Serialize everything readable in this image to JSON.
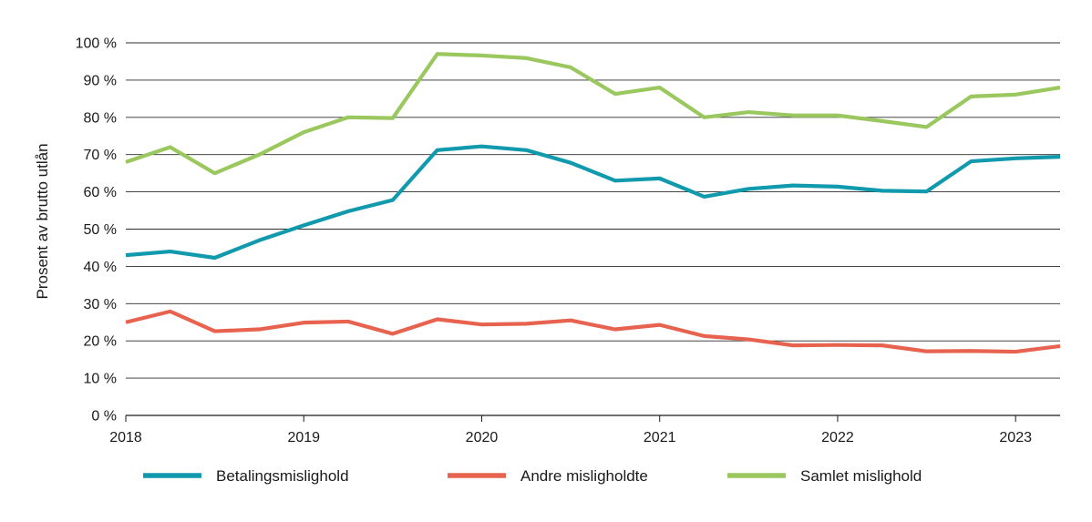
{
  "chart_data": {
    "type": "line",
    "title": "",
    "xlabel": "",
    "ylabel": "Prosent av brutto utlån",
    "x_tick_labels": [
      "2018",
      "2019",
      "2020",
      "2021",
      "2022",
      "2023"
    ],
    "y_tick_labels": [
      "0 %",
      "10 %",
      "20 %",
      "30 %",
      "40 %",
      "50 %",
      "60 %",
      "70 %",
      "80 %",
      "90 %",
      "100 %"
    ],
    "ylim": [
      0,
      100
    ],
    "xlim": [
      2018.0,
      2023.25
    ],
    "grid": "horizontal",
    "legend_position": "bottom",
    "x": [
      2018.0,
      2018.25,
      2018.5,
      2018.75,
      2019.0,
      2019.25,
      2019.5,
      2019.75,
      2020.0,
      2020.25,
      2020.5,
      2020.75,
      2021.0,
      2021.25,
      2021.5,
      2021.75,
      2022.0,
      2022.25,
      2022.5,
      2022.75,
      2023.0,
      2023.25
    ],
    "series": [
      {
        "name": "Betalingsmislighold",
        "color": "#1199ad",
        "values": [
          43.0,
          44.0,
          42.3,
          47.0,
          51.0,
          54.8,
          57.8,
          71.2,
          72.2,
          71.2,
          67.8,
          63.0,
          63.6,
          58.7,
          60.8,
          61.7,
          61.4,
          60.3,
          60.1,
          68.2,
          69.0,
          69.4
        ]
      },
      {
        "name": "Andre misligholdte",
        "color": "#e8634f",
        "values": [
          25.0,
          27.9,
          22.6,
          23.1,
          24.9,
          25.2,
          21.9,
          25.8,
          24.4,
          24.6,
          25.5,
          23.1,
          24.3,
          21.3,
          20.4,
          18.8,
          18.9,
          18.8,
          17.2,
          17.3,
          17.1,
          18.6
        ]
      },
      {
        "name": "Samlet mislighold",
        "color": "#9bc75f",
        "values": [
          68.0,
          72.0,
          65.0,
          70.0,
          76.0,
          80.0,
          79.8,
          97.0,
          96.6,
          95.9,
          93.4,
          86.3,
          88.0,
          80.0,
          81.4,
          80.5,
          80.5,
          79.0,
          77.4,
          85.6,
          86.1,
          88.0
        ]
      }
    ]
  }
}
